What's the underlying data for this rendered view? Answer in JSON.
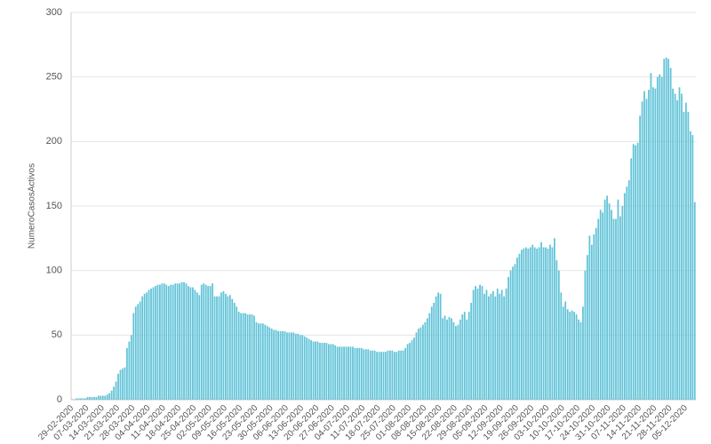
{
  "chart_data": {
    "type": "bar",
    "y_label": "NumeroCasosActivos",
    "color": "#62c3d8",
    "categories": [
      "29-02-2020",
      null,
      null,
      null,
      null,
      null,
      null,
      "07-03-2020",
      null,
      null,
      null,
      null,
      null,
      null,
      "14-03-2020",
      null,
      null,
      null,
      null,
      null,
      null,
      "21-03-2020",
      null,
      null,
      null,
      null,
      null,
      null,
      "28-03-2020",
      null,
      null,
      null,
      null,
      null,
      null,
      "04-04-2020",
      null,
      null,
      null,
      null,
      null,
      null,
      "11-04-2020",
      null,
      null,
      null,
      null,
      null,
      null,
      "18-04-2020",
      null,
      null,
      null,
      null,
      null,
      null,
      "25-04-2020",
      null,
      null,
      null,
      null,
      null,
      null,
      "02-05-2020",
      null,
      null,
      null,
      null,
      null,
      null,
      "09-05-2020",
      null,
      null,
      null,
      null,
      null,
      null,
      "16-05-2020",
      null,
      null,
      null,
      null,
      null,
      null,
      "23-05-2020",
      null,
      null,
      null,
      null,
      null,
      null,
      "30-05-2020",
      null,
      null,
      null,
      null,
      null,
      null,
      "06-06-2020",
      null,
      null,
      null,
      null,
      null,
      null,
      "13-06-2020",
      null,
      null,
      null,
      null,
      null,
      null,
      "20-06-2020",
      null,
      null,
      null,
      null,
      null,
      null,
      "27-06-2020",
      null,
      null,
      null,
      null,
      null,
      null,
      "04-07-2020",
      null,
      null,
      null,
      null,
      null,
      null,
      "11-07-2020",
      null,
      null,
      null,
      null,
      null,
      null,
      "18-07-2020",
      null,
      null,
      null,
      null,
      null,
      null,
      "25-07-2020",
      null,
      null,
      null,
      null,
      null,
      null,
      "01-08-2020",
      null,
      null,
      null,
      null,
      null,
      null,
      "08-08-2020",
      null,
      null,
      null,
      null,
      null,
      null,
      "15-08-2020",
      null,
      null,
      null,
      null,
      null,
      null,
      "22-08-2020",
      null,
      null,
      null,
      null,
      null,
      null,
      "29-08-2020",
      null,
      null,
      null,
      null,
      null,
      null,
      "05-09-2020",
      null,
      null,
      null,
      null,
      null,
      null,
      "12-09-2020",
      null,
      null,
      null,
      null,
      null,
      null,
      "19-09-2020",
      null,
      null,
      null,
      null,
      null,
      null,
      "26-09-2020",
      null,
      null,
      null,
      null,
      null,
      null,
      "03-10-2020",
      null,
      null,
      null,
      null,
      null,
      null,
      "10-10-2020",
      null,
      null,
      null,
      null,
      null,
      null,
      "17-10-2020",
      null,
      null,
      null,
      null,
      null,
      null,
      "24-10-2020",
      null,
      null,
      null,
      null,
      null,
      null,
      "31-10-2020",
      null,
      null,
      null,
      null,
      null,
      null,
      "07-11-2020",
      null,
      null,
      null,
      null,
      null,
      null,
      "14-11-2020",
      null,
      null,
      null,
      null,
      null,
      null,
      "21-11-2020",
      null,
      null,
      null,
      null,
      null,
      null,
      "28-11-2020",
      null,
      null,
      null,
      null,
      null,
      null,
      "05-12-2020",
      null,
      null,
      null,
      null
    ],
    "values": [
      0,
      0,
      1,
      1,
      1,
      1,
      1,
      2,
      2,
      2,
      2,
      2,
      3,
      3,
      3,
      3,
      4,
      5,
      7,
      10,
      14,
      20,
      23,
      24,
      25,
      40,
      45,
      50,
      67,
      72,
      74,
      76,
      80,
      82,
      83,
      85,
      86,
      87,
      88,
      89,
      89,
      90,
      90,
      89,
      88,
      89,
      89,
      90,
      90,
      90,
      91,
      91,
      90,
      88,
      87,
      87,
      85,
      83,
      81,
      89,
      90,
      89,
      88,
      88,
      90,
      80,
      80,
      80,
      83,
      84,
      82,
      80,
      81,
      78,
      75,
      72,
      68,
      67,
      67,
      67,
      66,
      66,
      66,
      65,
      60,
      59,
      59,
      59,
      58,
      57,
      56,
      55,
      54,
      54,
      53,
      53,
      53,
      53,
      52,
      52,
      52,
      52,
      51,
      51,
      50,
      50,
      49,
      48,
      47,
      46,
      45,
      45,
      45,
      44,
      44,
      44,
      44,
      43,
      43,
      43,
      42,
      41,
      41,
      41,
      41,
      41,
      41,
      41,
      41,
      40,
      40,
      40,
      40,
      39,
      39,
      39,
      38,
      38,
      38,
      37,
      37,
      37,
      37,
      37,
      38,
      38,
      38,
      37,
      37,
      38,
      38,
      38,
      40,
      43,
      44,
      46,
      48,
      52,
      55,
      56,
      58,
      60,
      63,
      67,
      72,
      75,
      80,
      83,
      82,
      63,
      65,
      62,
      64,
      63,
      60,
      57,
      58,
      62,
      66,
      68,
      62,
      68,
      75,
      85,
      88,
      86,
      89,
      88,
      82,
      85,
      80,
      82,
      84,
      80,
      86,
      82,
      85,
      80,
      86,
      95,
      100,
      103,
      105,
      110,
      113,
      116,
      117,
      118,
      117,
      118,
      120,
      118,
      117,
      118,
      122,
      118,
      118,
      117,
      120,
      118,
      125,
      108,
      100,
      83,
      72,
      76,
      70,
      68,
      69,
      68,
      66,
      62,
      60,
      72,
      100,
      112,
      127,
      120,
      128,
      133,
      140,
      147,
      145,
      155,
      158,
      152,
      147,
      140,
      140,
      155,
      142,
      150,
      160,
      165,
      170,
      187,
      198,
      197,
      199,
      220,
      231,
      239,
      233,
      240,
      253,
      242,
      241,
      250,
      252,
      250,
      264,
      265,
      264,
      257,
      241,
      237,
      232,
      242,
      237,
      223,
      230,
      223,
      208,
      205,
      153
    ],
    "ylim": [
      0,
      300
    ],
    "yticks": [
      0,
      50,
      100,
      150,
      200,
      250,
      300
    ],
    "grid": true
  }
}
